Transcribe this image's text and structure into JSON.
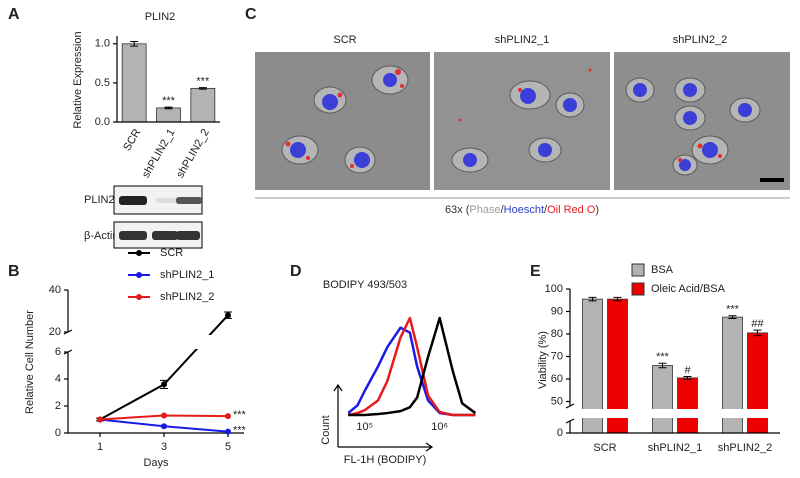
{
  "panel_labels": [
    "A",
    "B",
    "C",
    "D",
    "E"
  ],
  "blot": {
    "labels": [
      "PLIN2",
      "β-Actin"
    ]
  },
  "microscopy": {
    "conditions": [
      "SCR",
      "shPLIN2_1",
      "shPLIN2_2"
    ],
    "caption": [
      {
        "text": "63x (",
        "color": "#333333"
      },
      {
        "text": "Phase",
        "color": "#9a9a9a"
      },
      {
        "text": "/",
        "color": "#333333"
      },
      {
        "text": "Hoescht",
        "color": "#2a3cd0"
      },
      {
        "text": "/",
        "color": "#333333"
      },
      {
        "text": "Oil Red O",
        "color": "#e02020"
      },
      {
        "text": ")",
        "color": "#333333"
      }
    ]
  },
  "chart_data": [
    {
      "type": "bar",
      "title": "PLIN2",
      "ylabel": "Relative Expression",
      "categories": [
        "SCR",
        "shPLIN2_1",
        "shPLIN2_2"
      ],
      "values": [
        1,
        0.18,
        0.43
      ],
      "errors": [
        0.03,
        0.01,
        0.01
      ],
      "significance": [
        null,
        "***",
        "***"
      ],
      "color": "#b3b3b3",
      "ylim": [
        0,
        1.1
      ],
      "yticks": [
        {
          "value": 0,
          "label": "0.0"
        },
        {
          "value": 0.5,
          "label": "0.5"
        },
        {
          "value": 1,
          "label": "1.0"
        }
      ]
    },
    {
      "type": "line",
      "xlabel": "Days",
      "ylabel": "Relative Cell Number",
      "x": [
        1,
        3,
        5
      ],
      "series": [
        {
          "name": "SCR",
          "color": "#000000",
          "values": [
            1,
            3.6,
            28
          ],
          "errors": [
            0.1,
            0.3,
            1.5
          ],
          "significance": [
            null,
            null,
            null
          ]
        },
        {
          "name": "shPLIN2_1",
          "color": "#1a1ae6",
          "values": [
            1,
            0.5,
            0.1
          ],
          "significance": [
            null,
            null,
            "***"
          ]
        },
        {
          "name": "shPLIN2_2",
          "color": "#e61a1a",
          "values": [
            1,
            1.3,
            1.25
          ],
          "significance": [
            null,
            null,
            "***"
          ]
        }
      ],
      "xlim": [
        0,
        5.5
      ],
      "xticks": [
        1,
        3,
        5
      ],
      "ylim": [
        0,
        40
      ],
      "ybreak": [
        6,
        20
      ],
      "yticks": [
        0,
        2,
        4,
        6,
        20,
        40
      ],
      "legend": "top"
    },
    {
      "type": "density",
      "title": "BODIPY 493/503",
      "xlabel": "FL-1H (BODIPY)",
      "ylabel": "Count",
      "xscale": "log",
      "x": [
        60000,
        80000,
        100000,
        150000,
        200000,
        300000,
        400000,
        500000,
        700000,
        1000000,
        1500000,
        2000000,
        3000000
      ],
      "series": [
        {
          "color": "#1a1ae6",
          "values": [
            2,
            10,
            25,
            50,
            70,
            90,
            85,
            50,
            15,
            2,
            0,
            0,
            0
          ]
        },
        {
          "color": "#e61a1a",
          "values": [
            0,
            2,
            5,
            15,
            35,
            80,
            100,
            70,
            20,
            3,
            0,
            0,
            0
          ]
        },
        {
          "color": "#000000",
          "values": [
            0,
            0,
            0,
            1,
            2,
            4,
            8,
            18,
            60,
            100,
            45,
            12,
            2
          ]
        }
      ],
      "xlim": [
        40000,
        5000000
      ],
      "xticks": [
        {
          "value": 100000,
          "label": "10⁵"
        },
        {
          "value": 1000000,
          "label": "10⁶"
        }
      ],
      "ylim": [
        0,
        100
      ]
    },
    {
      "type": "bar",
      "ylabel": "Viability (%)",
      "categories": [
        "SCR",
        "shPLIN2_1",
        "shPLIN2_2"
      ],
      "series": [
        {
          "name": "BSA",
          "color": "#b3b3b3",
          "values": [
            95.5,
            66,
            87.5
          ],
          "errors": [
            0.8,
            1,
            0.6
          ],
          "significance": [
            null,
            "***",
            "***"
          ]
        },
        {
          "name": "Oleic Acid/BSA",
          "color": "#ee0000",
          "values": [
            95.5,
            60.5,
            80.5
          ],
          "errors": [
            0.8,
            0.6,
            1.2
          ],
          "significance": [
            null,
            "#",
            "##"
          ]
        }
      ],
      "ylim": [
        0,
        100
      ],
      "ybreak": [
        5,
        48
      ],
      "yticks": [
        0,
        50,
        60,
        70,
        80,
        90,
        100
      ],
      "legend": "top"
    }
  ]
}
